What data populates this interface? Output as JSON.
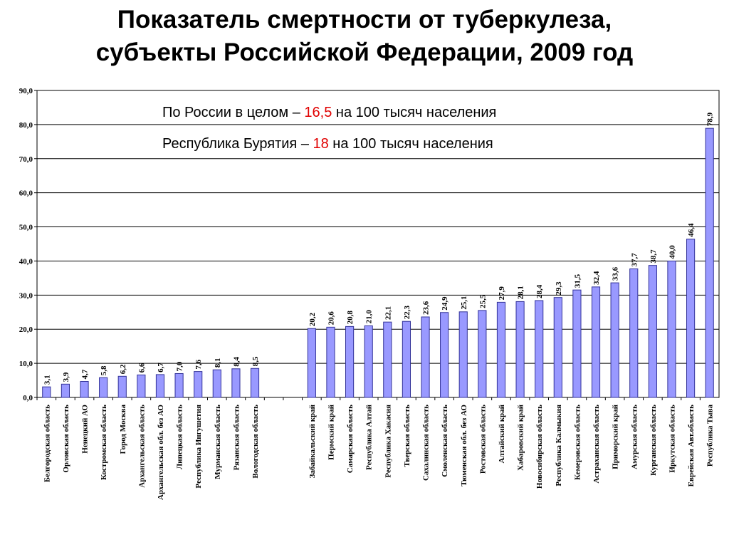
{
  "title_line1": "Показатель смертности от туберкулеза,",
  "title_line2": "субъекты Российской Федерации, 2009 год",
  "annotations": {
    "line1": {
      "before": "По России в целом – ",
      "value": "16,5",
      "after": " на 100 тысяч населения"
    },
    "line2": {
      "before": "Республика Бурятия – ",
      "value": "18",
      "after": " на 100 тысяч населения"
    }
  },
  "colors": {
    "bar_fill": "#9999ff",
    "bar_stroke": "#333399",
    "highlight": "#e00000"
  },
  "chart_data": {
    "type": "bar",
    "ylim": [
      0,
      90
    ],
    "yticks": [
      "0,0",
      "10,0",
      "20,0",
      "30,0",
      "40,0",
      "50,0",
      "60,0",
      "70,0",
      "80,0",
      "90,0"
    ],
    "grid": true,
    "groups": [
      {
        "categories": [
          "Белгородская область",
          "Орловская область",
          "Ненецкий АО",
          "Костромская область",
          "Город Москва",
          "Архангельская область",
          "Архангельская обл. без АО",
          "Липецкая область",
          "Республика Ингушетия",
          "Мурманская область",
          "Рязанская область",
          "Вологодская область"
        ],
        "values": [
          3.1,
          3.9,
          4.7,
          5.8,
          6.2,
          6.6,
          6.7,
          7.0,
          7.6,
          8.1,
          8.4,
          8.5
        ],
        "labels": [
          "3,1",
          "3,9",
          "4,7",
          "5,8",
          "6,2",
          "6,6",
          "6,7",
          "7,0",
          "7,6",
          "8,1",
          "8,4",
          "8,5"
        ]
      },
      {
        "categories": [
          "Забайкальский край",
          "Пермский край",
          "Самарская область",
          "Республика Алтай",
          "Республика Хакасия",
          "Тверская область",
          "Сахалинская область",
          "Смоленская область",
          "Тюменская обл. без АО",
          "Ростовская область",
          "Алтайский край",
          "Хабаровский край",
          "Новосибирская область",
          "Республика Калмыкия",
          "Кемеровская область",
          "Астраханская область",
          "Приморский край",
          "Амурская область",
          "Курганская область",
          "Иркутская область",
          "Еврейская Авт.область",
          "Республика Тыва"
        ],
        "values": [
          20.2,
          20.6,
          20.8,
          21.0,
          22.1,
          22.3,
          23.6,
          24.9,
          25.1,
          25.5,
          27.9,
          28.1,
          28.4,
          29.3,
          31.5,
          32.4,
          33.6,
          37.7,
          38.7,
          40.0,
          46.4,
          78.9
        ],
        "labels": [
          "20,2",
          "20,6",
          "20,8",
          "21,0",
          "22,1",
          "22,3",
          "23,6",
          "24,9",
          "25,1",
          "25,5",
          "27,9",
          "28,1",
          "28,4",
          "29,3",
          "31,5",
          "32,4",
          "33,6",
          "37,7",
          "38,7",
          "40,0",
          "46,4",
          "78,9"
        ]
      }
    ]
  }
}
